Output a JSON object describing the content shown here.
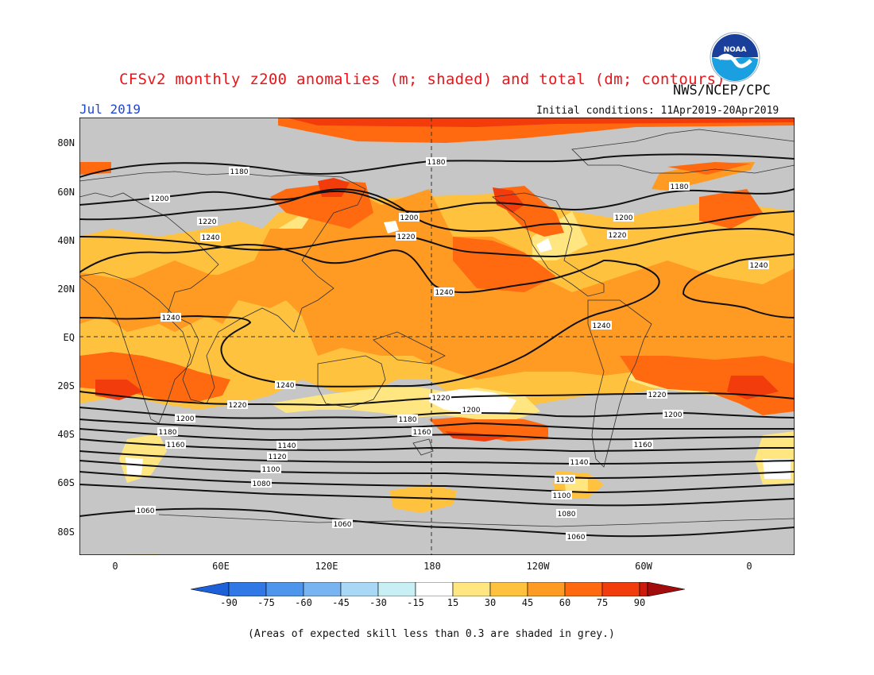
{
  "header": {
    "title": "CFSv2 monthly z200 anomalies (m; shaded) and total (dm; contours)",
    "agency": "NWS/NCEP/CPC",
    "month": "Jul 2019",
    "initial_conditions": "Initial conditions: 11Apr2019-20Apr2019",
    "logo_text": "NOAA"
  },
  "axes": {
    "lat_labels": [
      "80N",
      "60N",
      "40N",
      "20N",
      "EQ",
      "20S",
      "40S",
      "60S",
      "80S"
    ],
    "lon_labels": [
      "0",
      "60E",
      "120E",
      "180",
      "120W",
      "60W",
      "0"
    ]
  },
  "colorbar": {
    "labels": [
      "-90",
      "-75",
      "-60",
      "-45",
      "-30",
      "-15",
      "15",
      "30",
      "45",
      "60",
      "75",
      "90"
    ],
    "colors": [
      "#1e60d8",
      "#2f78e6",
      "#4e95ec",
      "#78b3f2",
      "#a8d8f6",
      "#c8f0f4",
      "#ffffff",
      "#ffe680",
      "#ffc23e",
      "#ff9a22",
      "#ff6a10",
      "#f23c0c",
      "#cc1a0c",
      "#a30c0c"
    ]
  },
  "map_colors": {
    "grey": "#c6c6c6",
    "light_yellow": "#ffe680",
    "yellow_orange": "#ffc23e",
    "orange": "#ff9a22",
    "dark_orange": "#ff6a10",
    "red": "#f23c0c",
    "dark_red": "#cc1a0c",
    "white": "#ffffff"
  },
  "contour_labels": {
    "l1180a": "1180",
    "l1180b": "1180",
    "l1180c": "1180",
    "l1200a": "1200",
    "l1200b": "1200",
    "l1200c": "1200",
    "l1220a": "1220",
    "l1220b": "1220",
    "l1220c": "1220",
    "l1240a": "1240",
    "l1240b": "1240",
    "l1240c": "1240",
    "l1240d": "1240",
    "l1240e": "1240",
    "l1240f": "1240",
    "l1220d": "1220",
    "l1220e": "1220",
    "l1220f": "1220",
    "l1200d": "1200",
    "l1200e": "1200",
    "l1200f": "1200",
    "l1180d": "1180",
    "l1180e": "1180",
    "l1160a": "1160",
    "l1160b": "1160",
    "l1160c": "1160",
    "l1140a": "1140",
    "l1140b": "1140",
    "l1120a": "1120",
    "l1120b": "1120",
    "l1100a": "1100",
    "l1100b": "1100",
    "l1080a": "1080",
    "l1080b": "1080",
    "l1060a": "1060",
    "l1060b": "1060",
    "l1060c": "1060"
  },
  "footnote": "(Areas of expected skill less than 0.3 are shaded in grey.)"
}
